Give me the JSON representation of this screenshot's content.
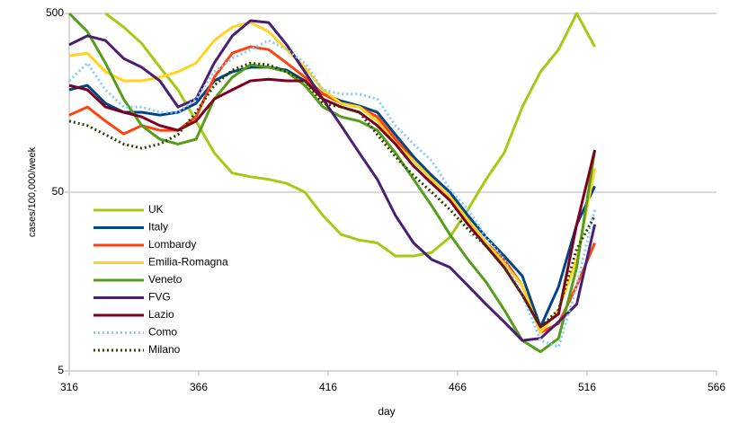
{
  "chart_data": {
    "type": "line",
    "log_y": true,
    "grid": "y",
    "legend": "left",
    "xlabel": "day",
    "ylabel": "cases/100,000/week",
    "xlim": [
      316,
      566
    ],
    "xticks": [
      316,
      366,
      416,
      466,
      516,
      566
    ],
    "ylim": [
      5,
      500
    ],
    "yticks": [
      5,
      50,
      500
    ],
    "x": [
      316,
      323,
      330,
      337,
      344,
      351,
      358,
      365,
      372,
      379,
      386,
      393,
      400,
      407,
      414,
      421,
      428,
      435,
      442,
      449,
      456,
      463,
      470,
      477,
      484,
      491,
      498,
      505,
      512,
      519
    ],
    "series": [
      {
        "name": "UK",
        "color": "#a6c916",
        "style": "solid",
        "values": [
          null,
          null,
          500,
          420,
          340,
          250,
          187,
          125,
          83,
          64,
          61,
          59,
          56,
          50,
          37,
          29,
          27,
          26,
          22,
          22,
          23,
          28,
          40,
          59,
          83,
          150,
          236,
          314,
          500,
          326
        ]
      },
      {
        "name": "Italy",
        "color": "#004586",
        "style": "solid",
        "values": [
          187,
          198,
          157,
          140,
          140,
          135,
          140,
          157,
          210,
          236,
          250,
          250,
          241,
          210,
          177,
          162,
          152,
          140,
          105,
          79,
          62,
          50,
          37,
          28,
          22,
          17,
          8.8,
          14.8,
          33,
          54
        ]
      },
      {
        "name": "Lombardy",
        "color": "#ff420e",
        "style": "solid",
        "values": [
          135,
          150,
          125,
          106,
          118,
          111,
          111,
          132,
          220,
          300,
          326,
          314,
          264,
          220,
          177,
          157,
          150,
          132,
          99,
          75,
          59,
          47,
          35,
          26,
          21,
          15,
          8.2,
          9.2,
          15,
          26
        ]
      },
      {
        "name": "Emilia-Romagna",
        "color": "#ffd320",
        "style": "solid",
        "values": [
          290,
          300,
          236,
          210,
          210,
          220,
          236,
          264,
          353,
          420,
          445,
          396,
          314,
          250,
          187,
          157,
          150,
          125,
          93,
          75,
          59,
          47,
          35,
          26,
          20,
          15,
          8.2,
          11,
          21,
          68
        ]
      },
      {
        "name": "Veneto",
        "color": "#579d1c",
        "style": "solid",
        "values": [
          500,
          396,
          264,
          166,
          118,
          99,
          93,
          99,
          166,
          220,
          258,
          250,
          236,
          198,
          150,
          132,
          125,
          111,
          83,
          59,
          42,
          29,
          21,
          15.7,
          11,
          7.4,
          6.4,
          7.6,
          19,
          86
        ]
      },
      {
        "name": "FVG",
        "color": "#4b1f6f",
        "style": "solid",
        "values": [
          334,
          375,
          353,
          280,
          250,
          210,
          150,
          166,
          264,
          375,
          456,
          445,
          334,
          236,
          166,
          118,
          83,
          59,
          37,
          26,
          21,
          19,
          15,
          11.8,
          9.4,
          7.4,
          7.6,
          9.4,
          11.8,
          33
        ]
      },
      {
        "name": "Lazio",
        "color": "#7e0021",
        "style": "solid",
        "values": [
          198,
          187,
          150,
          140,
          132,
          118,
          111,
          125,
          166,
          187,
          210,
          214,
          210,
          210,
          166,
          150,
          140,
          118,
          93,
          70,
          56,
          45,
          33,
          25,
          19,
          13.3,
          8.8,
          10.4,
          33,
          86
        ]
      },
      {
        "name": "Como",
        "color": "#83caff",
        "style": "dotted",
        "values": [
          210,
          264,
          187,
          150,
          150,
          140,
          140,
          166,
          236,
          280,
          314,
          353,
          314,
          264,
          187,
          177,
          177,
          166,
          118,
          93,
          75,
          52,
          40,
          28,
          21,
          13.3,
          7.4,
          6.8,
          15,
          40
        ]
      },
      {
        "name": "Milano",
        "color": "#314004",
        "style": "dotted",
        "values": [
          125,
          118,
          105,
          93,
          88,
          93,
          105,
          140,
          198,
          241,
          264,
          258,
          236,
          210,
          157,
          150,
          140,
          105,
          79,
          62,
          50,
          40,
          31,
          25,
          19,
          13.3,
          8.8,
          11,
          24,
          37
        ]
      }
    ]
  }
}
